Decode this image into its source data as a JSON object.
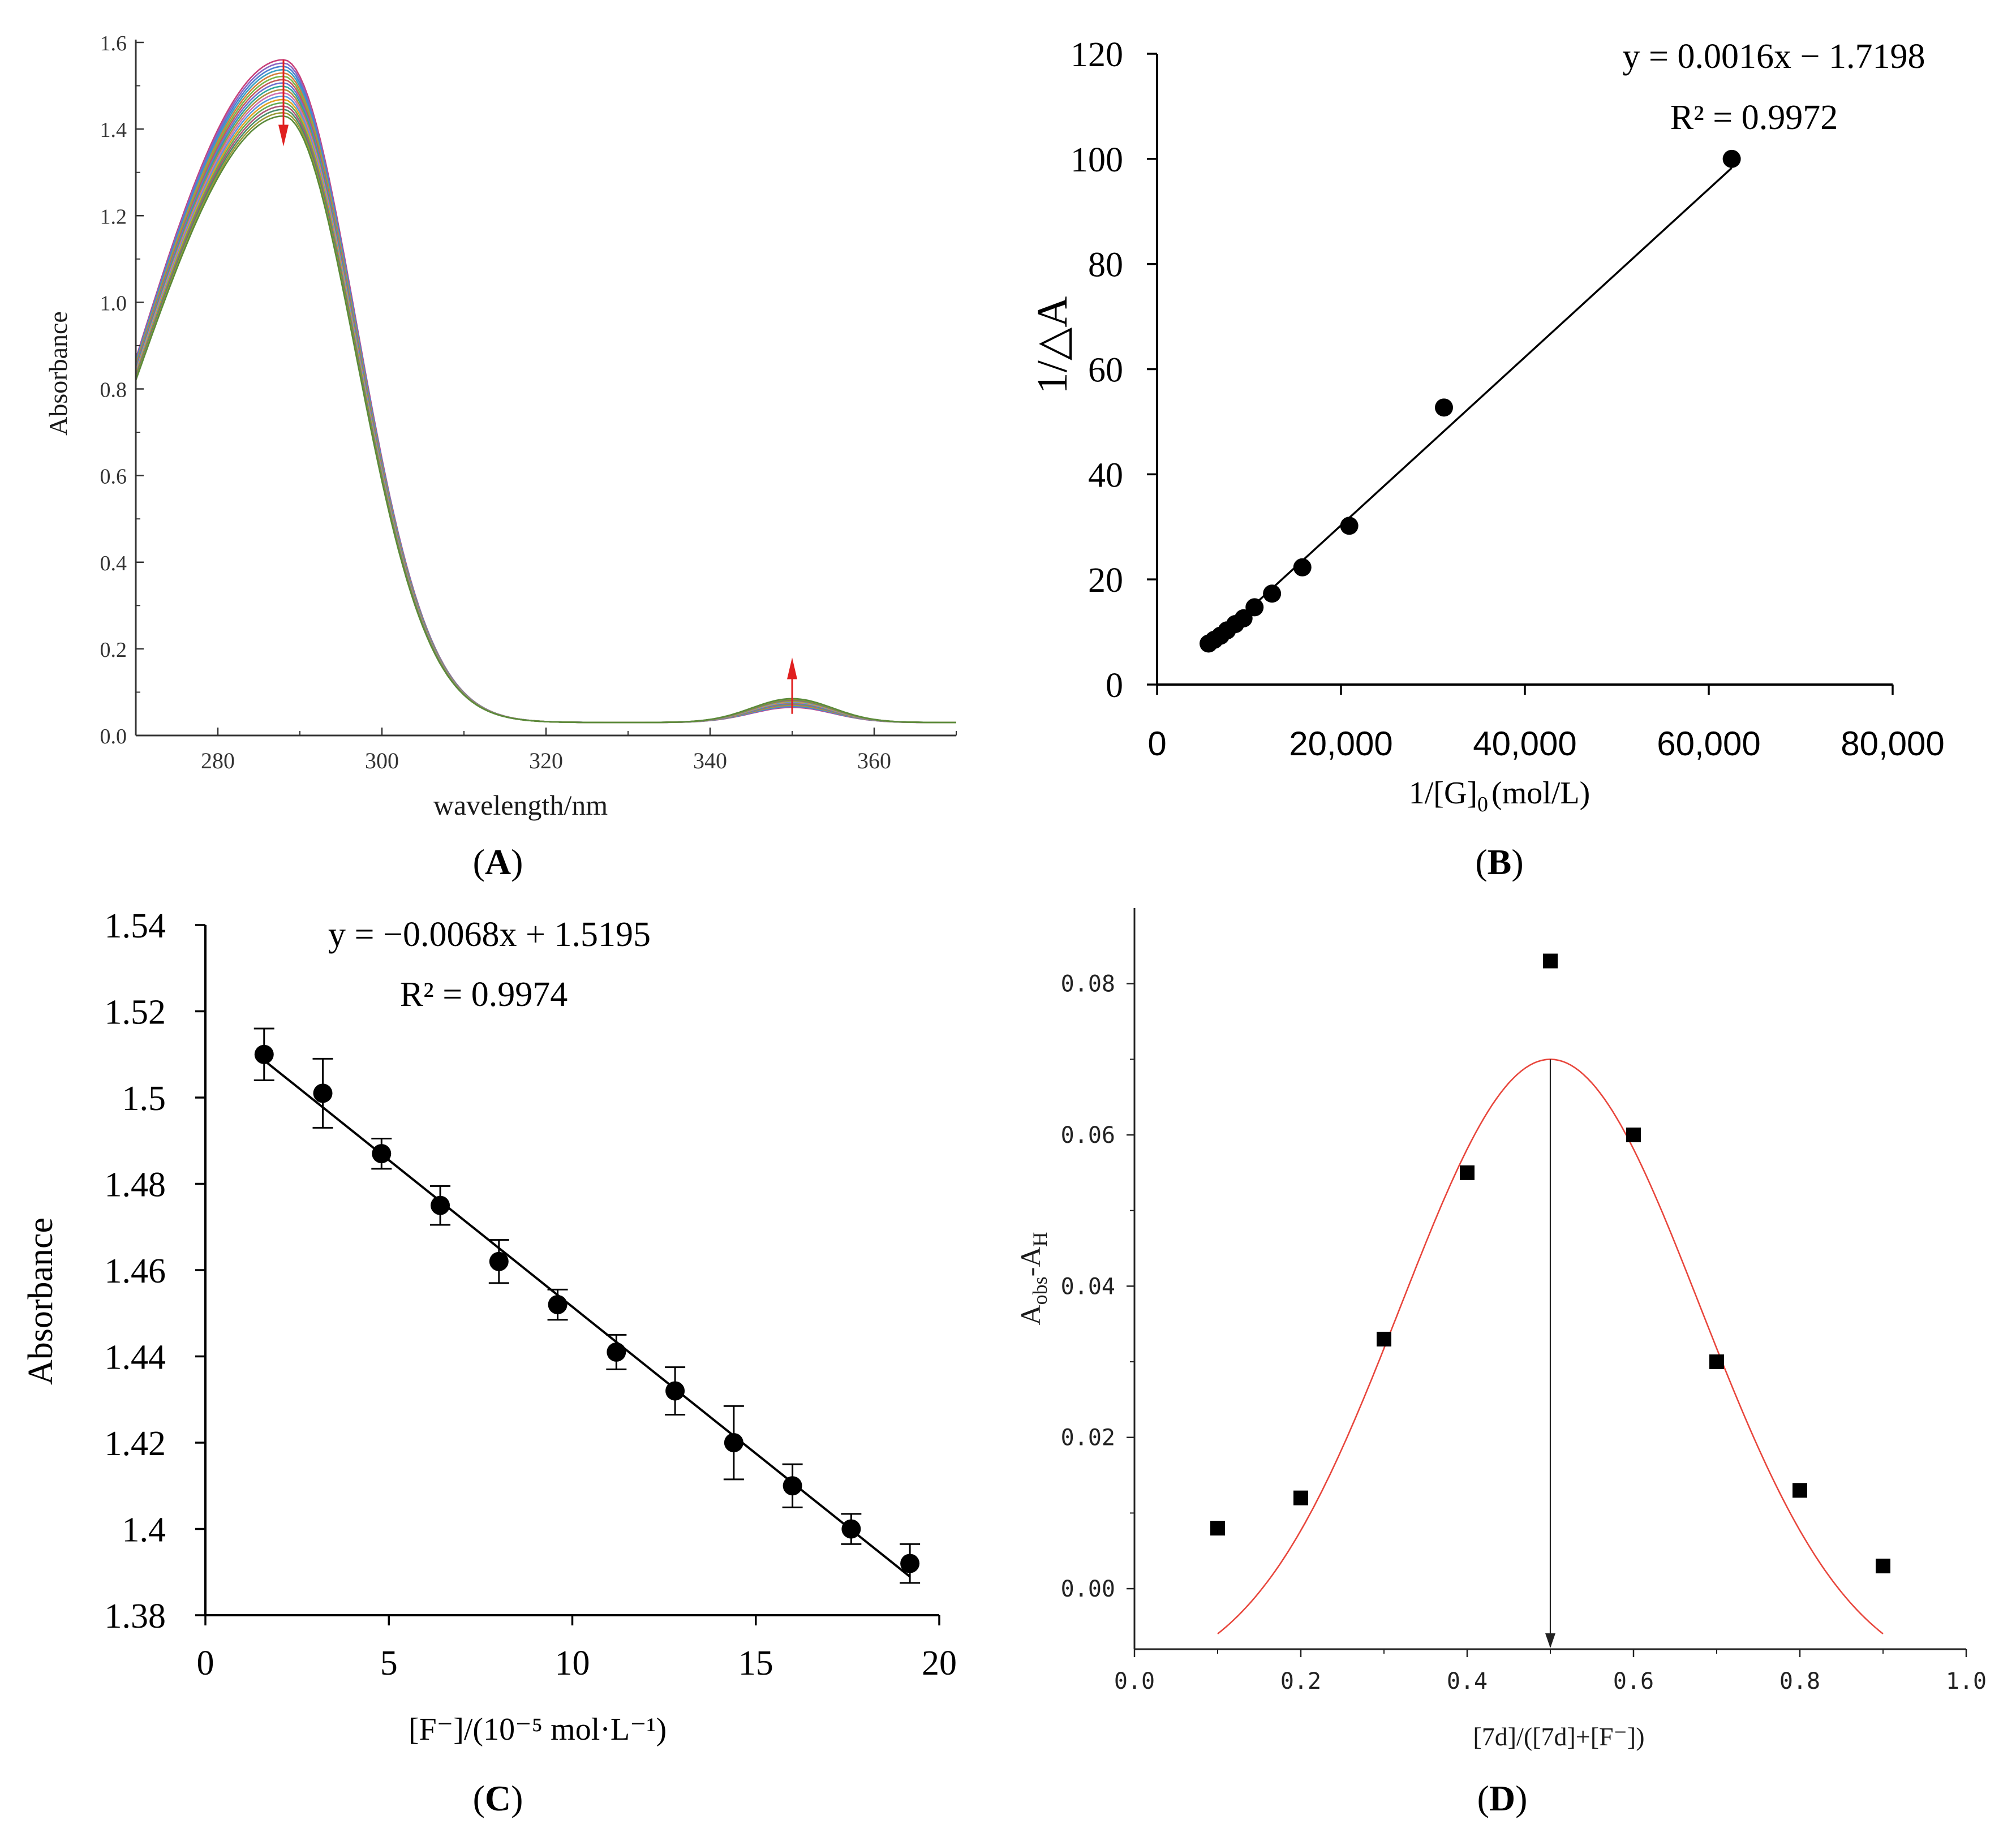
{
  "chart_data": [
    {
      "panel": "A",
      "caption_letter": "A",
      "type": "line",
      "xlabel": "wavelength/nm",
      "ylabel": "Absorbance",
      "xlim": [
        270,
        370
      ],
      "ylim": [
        0.0,
        1.6
      ],
      "xticks": [
        "280",
        "300",
        "320",
        "340",
        "360"
      ],
      "yticks": [
        "0.0",
        "0.2",
        "0.4",
        "0.6",
        "0.8",
        "1.0",
        "1.2",
        "1.4",
        "1.6"
      ],
      "series_count": 18,
      "peak_wavelength": 288,
      "peak_absorbance_range": [
        1.4,
        1.53
      ],
      "minor_peak_wavelength": 350,
      "minor_peak_absorbance_range": [
        0.035,
        0.055
      ],
      "annotations": [
        {
          "type": "arrow-down",
          "at_x": 288
        },
        {
          "type": "arrow-up",
          "at_x": 350
        }
      ],
      "series_colors": [
        "#c8417a",
        "#8a64c2",
        "#4b7fd1",
        "#3aa0c0",
        "#d27f3a",
        "#7ab648",
        "#c45a5a",
        "#6f6fd0",
        "#2fa69a",
        "#b08d3f",
        "#cf6fb1",
        "#5599dd",
        "#e0a020",
        "#66aa55",
        "#aa5577",
        "#4c8c6c",
        "#999933",
        "#5a8a3a"
      ]
    },
    {
      "panel": "B",
      "caption_letter": "B",
      "type": "scatter",
      "xlabel_main": "1/[G]",
      "xlabel_sub": "0",
      "xlabel_unit": "(mol/L)",
      "ylabel": "1/△A",
      "xlim": [
        0,
        80000
      ],
      "ylim": [
        0,
        120
      ],
      "xticks": [
        "0",
        "20,000",
        "40,000",
        "60,000",
        "80,000"
      ],
      "yticks": [
        "0",
        "20",
        "40",
        "60",
        "80",
        "100",
        "120"
      ],
      "points": [
        [
          5600,
          7.8
        ],
        [
          6200,
          8.5
        ],
        [
          6900,
          9.3
        ],
        [
          7600,
          10.3
        ],
        [
          8500,
          11.5
        ],
        [
          9400,
          12.6
        ],
        [
          10600,
          14.7
        ],
        [
          12500,
          17.3
        ],
        [
          15800,
          22.3
        ],
        [
          20900,
          30.2
        ],
        [
          31200,
          52.7
        ],
        [
          62500,
          100.0
        ]
      ],
      "fit": {
        "slope": 0.0016,
        "intercept": -1.7198,
        "x_range": [
          5600,
          62500
        ]
      },
      "equation": "y = 0.0016x − 1.7198",
      "r2": "R² = 0.9972"
    },
    {
      "panel": "C",
      "caption_letter": "C",
      "type": "scatter",
      "xlabel": "[F⁻]/(10⁻⁵ mol·L⁻¹)",
      "ylabel": "Absorbance",
      "xlim": [
        0,
        20
      ],
      "ylim": [
        1.38,
        1.54
      ],
      "xticks": [
        "0",
        "5",
        "10",
        "15",
        "20"
      ],
      "yticks": [
        "1.38",
        "1.4",
        "1.42",
        "1.44",
        "1.46",
        "1.48",
        "1.5",
        "1.52",
        "1.54"
      ],
      "points": [
        {
          "x": 1.6,
          "y": 1.51,
          "err": 0.006
        },
        {
          "x": 3.2,
          "y": 1.501,
          "err": 0.008
        },
        {
          "x": 4.8,
          "y": 1.487,
          "err": 0.0035
        },
        {
          "x": 6.4,
          "y": 1.475,
          "err": 0.0045
        },
        {
          "x": 8.0,
          "y": 1.462,
          "err": 0.005
        },
        {
          "x": 9.6,
          "y": 1.452,
          "err": 0.0035
        },
        {
          "x": 11.2,
          "y": 1.441,
          "err": 0.004
        },
        {
          "x": 12.8,
          "y": 1.432,
          "err": 0.0055
        },
        {
          "x": 14.4,
          "y": 1.42,
          "err": 0.0085
        },
        {
          "x": 16.0,
          "y": 1.41,
          "err": 0.005
        },
        {
          "x": 17.6,
          "y": 1.4,
          "err": 0.0035
        },
        {
          "x": 19.2,
          "y": 1.392,
          "err": 0.0045
        }
      ],
      "fit": {
        "slope": -0.0068,
        "intercept": 1.5195,
        "x_range": [
          1.6,
          19.2
        ]
      },
      "equation": "y = −0.0068x + 1.5195",
      "r2": "R² = 0.9974"
    },
    {
      "panel": "D",
      "caption_letter": "D",
      "type": "scatter",
      "xlabel": "[7d]/([7d]+[F⁻])",
      "ylabel_main": "A",
      "ylabel_sub1": "obs",
      "ylabel_mid": "-A",
      "ylabel_sub2": "H",
      "xlim": [
        0.0,
        1.0
      ],
      "ylim": [
        -0.008,
        0.09
      ],
      "xticks": [
        "0.0",
        "0.2",
        "0.4",
        "0.6",
        "0.8",
        "1.0"
      ],
      "yticks": [
        "0.00",
        "0.02",
        "0.04",
        "0.06",
        "0.08"
      ],
      "points": [
        [
          0.1,
          0.008
        ],
        [
          0.2,
          0.012
        ],
        [
          0.3,
          0.033
        ],
        [
          0.4,
          0.055
        ],
        [
          0.5,
          0.083
        ],
        [
          0.6,
          0.06
        ],
        [
          0.7,
          0.03
        ],
        [
          0.8,
          0.013
        ],
        [
          0.9,
          0.003
        ]
      ],
      "fit_curve": {
        "type": "gaussian",
        "center": 0.5,
        "peak": 0.07,
        "floor": -0.013,
        "sigma": 0.18,
        "x_range": [
          0.1,
          0.9
        ],
        "color": "#e8463c"
      },
      "marker_line_x": 0.5
    }
  ]
}
